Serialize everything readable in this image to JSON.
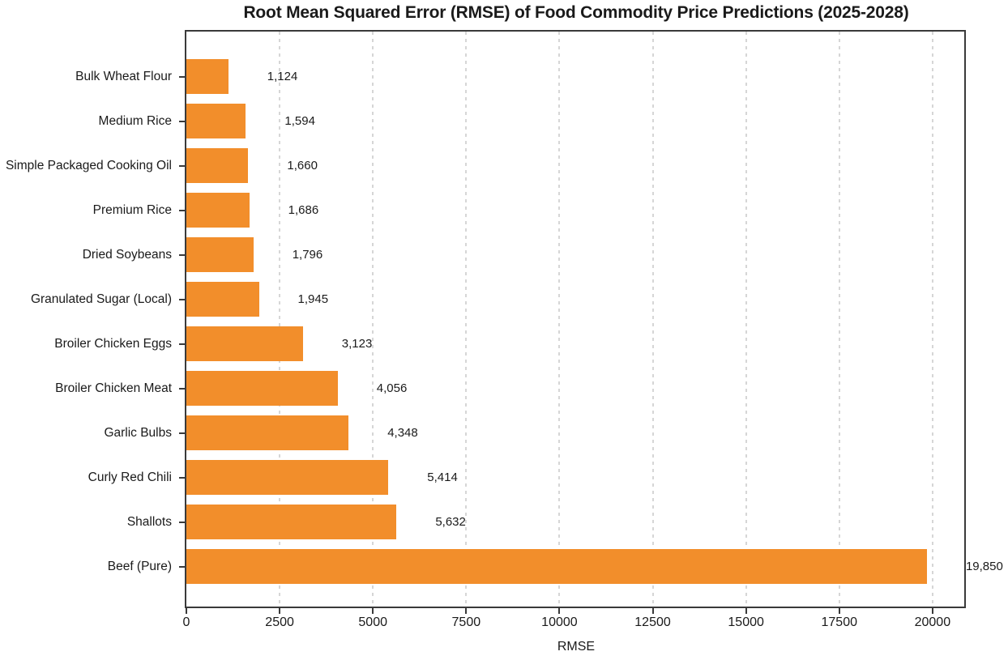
{
  "title": "Root Mean Squared Error (RMSE) of Food Commodity Price Predictions (2025-2028)",
  "chart_data": {
    "type": "bar",
    "orientation": "horizontal",
    "title": "Root Mean Squared Error (RMSE) of Food Commodity Price Predictions (2025-2028)",
    "xlabel": "RMSE",
    "ylabel": "",
    "categories": [
      "Bulk Wheat Flour",
      "Medium Rice",
      "Simple Packaged Cooking Oil",
      "Premium Rice",
      "Dried Soybeans",
      "Granulated Sugar (Local)",
      "Broiler Chicken Eggs",
      "Broiler Chicken Meat",
      "Garlic Bulbs",
      "Curly Red Chili",
      "Shallots",
      "Beef (Pure)"
    ],
    "values": [
      1124,
      1594,
      1660,
      1686,
      1796,
      1945,
      3123,
      4056,
      4348,
      5414,
      5632,
      19850
    ],
    "value_labels": [
      "1,124",
      "1,594",
      "1,660",
      "1,686",
      "1,796",
      "1,945",
      "3,123",
      "4,056",
      "4,348",
      "5,414",
      "5,632",
      "19,850"
    ],
    "xticks": [
      0,
      2500,
      5000,
      7500,
      10000,
      12500,
      15000,
      17500,
      20000
    ],
    "xtick_labels": [
      "0",
      "2500",
      "5000",
      "7500",
      "10000",
      "12500",
      "15000",
      "17500",
      "20000"
    ],
    "xlim": [
      0,
      20850
    ],
    "grid": "vertical-dashed",
    "legend": "none",
    "colors": {
      "bar": "#F28E2B",
      "spine": "#3a3a3a",
      "gridline": "#d6d6d6",
      "text": "#1a1a1a"
    }
  }
}
